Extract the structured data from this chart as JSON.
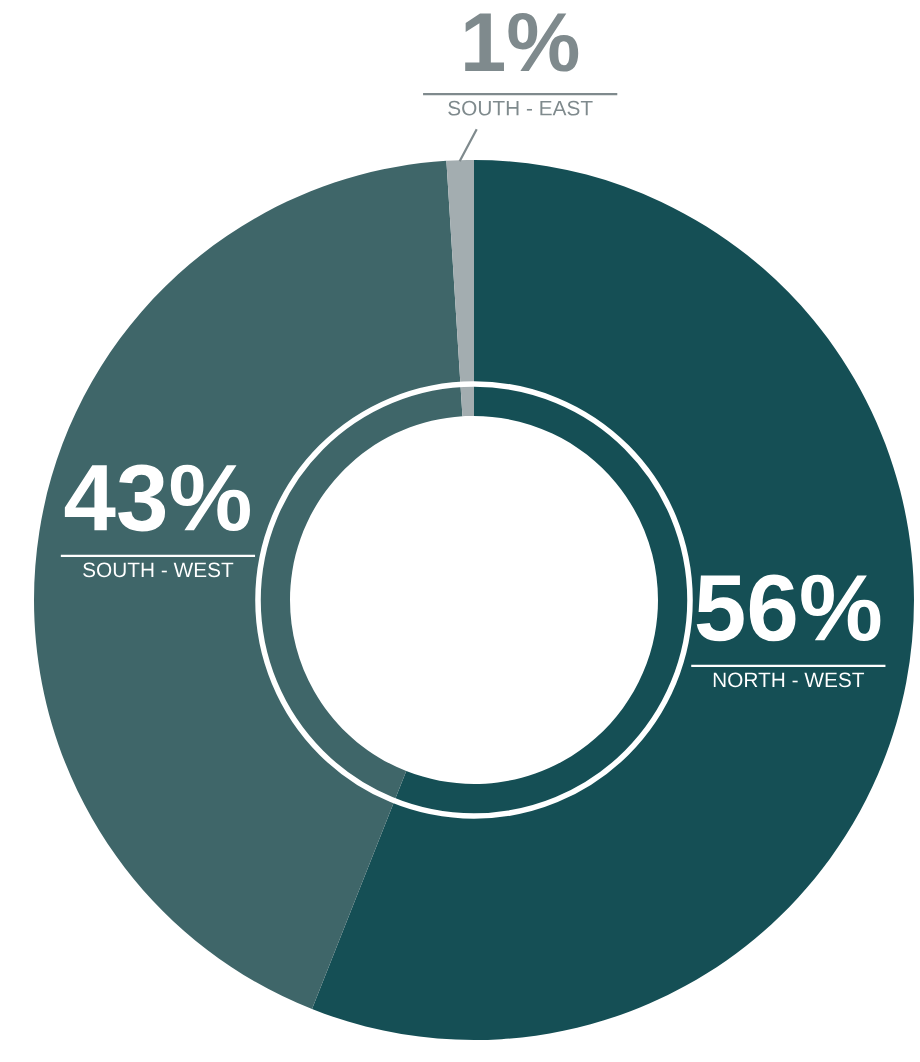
{
  "chart_data": {
    "type": "donut",
    "categories": [
      "NORTH - WEST",
      "SOUTH - WEST",
      "SOUTH - EAST"
    ],
    "values": [
      56,
      43,
      1
    ],
    "colors": [
      "#154f55",
      "#3f6669",
      "#a3adb0"
    ],
    "value_labels": [
      "56%",
      "43%",
      "1%"
    ],
    "legend": false
  }
}
